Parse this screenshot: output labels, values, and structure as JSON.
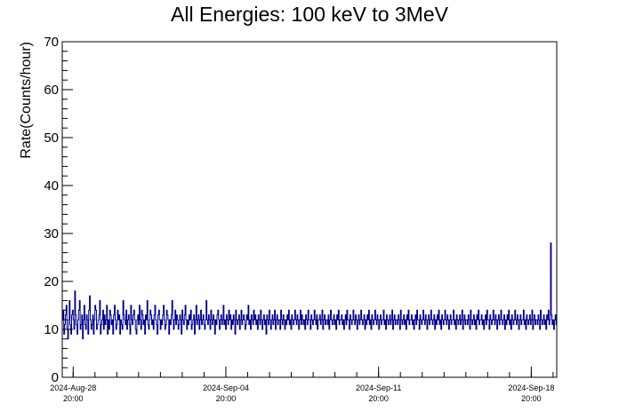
{
  "chart_data": {
    "type": "line",
    "title": "All Energies:  100 keV to 3MeV",
    "xlabel": "",
    "ylabel": "Rate(Counts/hour)",
    "ylim": [
      0,
      70
    ],
    "y_ticks": [
      0,
      10,
      20,
      30,
      40,
      50,
      60,
      70
    ],
    "x_range": [
      "2024-Aug-28 08:00",
      "2024-Sep-20 00:00"
    ],
    "x_ticks": [
      {
        "date": "2024-Aug-28",
        "time": "20:00"
      },
      {
        "date": "2024-Sep-04",
        "time": "20:00"
      },
      {
        "date": "2024-Sep-11",
        "time": "20:00"
      },
      {
        "date": "2024-Sep-18",
        "time": "20:00"
      }
    ],
    "grid": false,
    "legend": "none",
    "colors": {
      "series": "#00008b",
      "axis": "#000000"
    },
    "series": [
      {
        "values": [
          12,
          14,
          9,
          11,
          13,
          15,
          10,
          8,
          12,
          16,
          11,
          9,
          13,
          14,
          12,
          10,
          18,
          13,
          11,
          9,
          12,
          14,
          16,
          10,
          11,
          13,
          8,
          12,
          15,
          11,
          10,
          13,
          12,
          9,
          14,
          17,
          12,
          10,
          11,
          13,
          9,
          12,
          15,
          14,
          10,
          11,
          12,
          13,
          16,
          9,
          11,
          12,
          14,
          10,
          13,
          11,
          12,
          15,
          9,
          12,
          10,
          14,
          13,
          11,
          12,
          9,
          13,
          15,
          12,
          10,
          11,
          14,
          12,
          13,
          9,
          12,
          11,
          10,
          16,
          13,
          12,
          11,
          14,
          10,
          12,
          13,
          11,
          9,
          15,
          12,
          11,
          13,
          14,
          12,
          10,
          9,
          12,
          13,
          11,
          15,
          12,
          10,
          14,
          13,
          11,
          12,
          9,
          13,
          12,
          16,
          11,
          10,
          12,
          14,
          13,
          11,
          12,
          10,
          13,
          15,
          12,
          11,
          9,
          13,
          14,
          12,
          10,
          12,
          11,
          13,
          15,
          12,
          10,
          11,
          14,
          13,
          12,
          9,
          12,
          11,
          13,
          16,
          12,
          10,
          12,
          14,
          11,
          13,
          12,
          10,
          11,
          13,
          12,
          9,
          14,
          12,
          11,
          13,
          15,
          12,
          10,
          12,
          11,
          13,
          12,
          14,
          10,
          11,
          12,
          13,
          9,
          12,
          15,
          11,
          12,
          13,
          10,
          12,
          14,
          11,
          12,
          13,
          11,
          10,
          12,
          16,
          12,
          11,
          13,
          12,
          10,
          14,
          12,
          11,
          13,
          12,
          9,
          12,
          11,
          13,
          14,
          12,
          10,
          12,
          13,
          11,
          12,
          15,
          11,
          12,
          10,
          13,
          12,
          11,
          14,
          12,
          13,
          10,
          12,
          11,
          13,
          12,
          9,
          14,
          12,
          11,
          12,
          13,
          10,
          12,
          14,
          11,
          12,
          13,
          12,
          10,
          11,
          13,
          12,
          15,
          11,
          12,
          10,
          13,
          12,
          11,
          14,
          12,
          13,
          11,
          12,
          10,
          13,
          12,
          11,
          14,
          12,
          10,
          12,
          13,
          11,
          12,
          9,
          13,
          12,
          11,
          14,
          12,
          10,
          12,
          13,
          11,
          12,
          14,
          10,
          12,
          13,
          11,
          12,
          12,
          10,
          14,
          12,
          11,
          13,
          12,
          10,
          12,
          11,
          13,
          12,
          14,
          11,
          12,
          10,
          13,
          12,
          11,
          12,
          14,
          12,
          11,
          13,
          12,
          10,
          12,
          14,
          11,
          13,
          12,
          11,
          12,
          10,
          13,
          12,
          11,
          14,
          12,
          12,
          10,
          13,
          12,
          11,
          12,
          14,
          12,
          11,
          13,
          10,
          12,
          12,
          13,
          11,
          12,
          14,
          10,
          12,
          13,
          11,
          12,
          12,
          11,
          13,
          10,
          12,
          14,
          12,
          11,
          12,
          13,
          11,
          12,
          10,
          13,
          12,
          14,
          11,
          12,
          12,
          13,
          11,
          12,
          10,
          12,
          13,
          11,
          14,
          12,
          12,
          10,
          13,
          12,
          11,
          12,
          14,
          12,
          11,
          13,
          12,
          10,
          12,
          13,
          11,
          12,
          14,
          12,
          11,
          12,
          13,
          10,
          12,
          11,
          13,
          12,
          14,
          11,
          12,
          10,
          13,
          12,
          11,
          12,
          14,
          12,
          11,
          13,
          12,
          10,
          12,
          13,
          11,
          12,
          12,
          14,
          11,
          12,
          10,
          13,
          12,
          11,
          12,
          13,
          11,
          12,
          14,
          10,
          12,
          13,
          11,
          12,
          12,
          11,
          13,
          12,
          10,
          14,
          12,
          11,
          12,
          13,
          11,
          12,
          10,
          13,
          12,
          14,
          11,
          12,
          12,
          13,
          11,
          12,
          10,
          12,
          13,
          11,
          14,
          12,
          12,
          10,
          13,
          12,
          11,
          12,
          14,
          12,
          11,
          13,
          12,
          10,
          12,
          13,
          11,
          12,
          14,
          12,
          11,
          12,
          13,
          10,
          12,
          11,
          13,
          12,
          14,
          11,
          12,
          10,
          13,
          12,
          11,
          12,
          14,
          12,
          11,
          13,
          12,
          10,
          12,
          13,
          11,
          12,
          12,
          14,
          11,
          12,
          10,
          13,
          12,
          11,
          12,
          13,
          11,
          12,
          14,
          10,
          12,
          13,
          11,
          12,
          12,
          11,
          13,
          12,
          10,
          14,
          12,
          11,
          12,
          13,
          11,
          12,
          10,
          13,
          12,
          14,
          11,
          12,
          12,
          13,
          11,
          12,
          10,
          12,
          13,
          11,
          14,
          12,
          12,
          10,
          13,
          12,
          11,
          12,
          14,
          12,
          11,
          13,
          12,
          10,
          12,
          13,
          11,
          12,
          14,
          12,
          11,
          12,
          13,
          10,
          12,
          11,
          13,
          12,
          14,
          11,
          12,
          10,
          13,
          12,
          11,
          12,
          14,
          12,
          11,
          13,
          12,
          10,
          12,
          13,
          11,
          12,
          12,
          14,
          11,
          12,
          10,
          13,
          12,
          11,
          12,
          13,
          11,
          12,
          14,
          10,
          12,
          13,
          11,
          12,
          12,
          11,
          13,
          12,
          10,
          14,
          12,
          11,
          12,
          13,
          11,
          12,
          10,
          13,
          12,
          14,
          11,
          12,
          28,
          13,
          11,
          12,
          10,
          12,
          13,
          11
        ]
      }
    ]
  }
}
